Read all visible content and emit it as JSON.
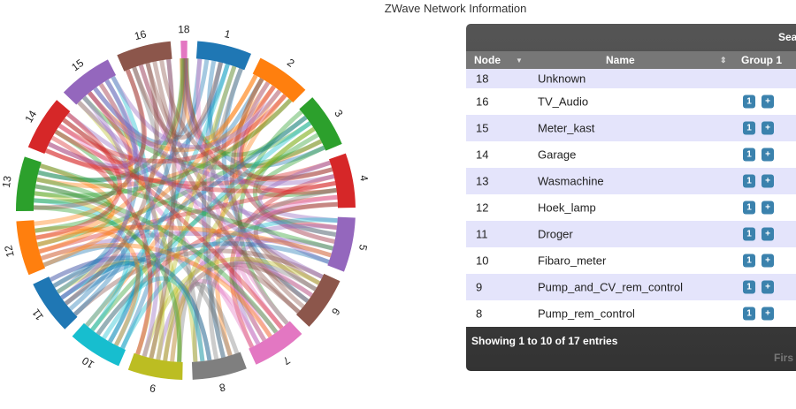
{
  "header": {
    "title": "ZWave Network Information"
  },
  "chord": {
    "nodes": [
      {
        "label": "18",
        "color": "#e377c2"
      },
      {
        "label": "1",
        "color": "#1f77b4"
      },
      {
        "label": "2",
        "color": "#ff7f0e"
      },
      {
        "label": "3",
        "color": "#2ca02c"
      },
      {
        "label": "4",
        "color": "#d62728"
      },
      {
        "label": "5",
        "color": "#9467bd"
      },
      {
        "label": "6",
        "color": "#8c564b"
      },
      {
        "label": "7",
        "color": "#e377c2"
      },
      {
        "label": "8",
        "color": "#7f7f7f"
      },
      {
        "label": "9",
        "color": "#bcbd22"
      },
      {
        "label": "10",
        "color": "#17becf"
      },
      {
        "label": "11",
        "color": "#1f77b4"
      },
      {
        "label": "12",
        "color": "#ff7f0e"
      },
      {
        "label": "13",
        "color": "#2ca02c"
      },
      {
        "label": "14",
        "color": "#d62728"
      },
      {
        "label": "15",
        "color": "#9467bd"
      },
      {
        "label": "16",
        "color": "#8c564b"
      }
    ]
  },
  "table": {
    "search": "Sea",
    "columns": [
      "Node",
      "Name",
      "Group 1"
    ],
    "rows": [
      {
        "node": 18,
        "name": "Unknown",
        "group": []
      },
      {
        "node": 16,
        "name": "TV_Audio",
        "group": [
          "1",
          "+"
        ]
      },
      {
        "node": 15,
        "name": "Meter_kast",
        "group": [
          "1",
          "+"
        ]
      },
      {
        "node": 14,
        "name": "Garage",
        "group": [
          "1",
          "+"
        ]
      },
      {
        "node": 13,
        "name": "Wasmachine",
        "group": [
          "1",
          "+"
        ]
      },
      {
        "node": 12,
        "name": "Hoek_lamp",
        "group": [
          "1",
          "+"
        ]
      },
      {
        "node": 11,
        "name": "Droger",
        "group": [
          "1",
          "+"
        ]
      },
      {
        "node": 10,
        "name": "Fibaro_meter",
        "group": [
          "1",
          "+"
        ]
      },
      {
        "node": 9,
        "name": "Pump_and_CV_rem_control",
        "group": [
          "1",
          "+"
        ]
      },
      {
        "node": 8,
        "name": "Pump_rem_control",
        "group": [
          "1",
          "+"
        ]
      }
    ],
    "info": "Showing 1 to 10 of 17 entries",
    "first": "Firs"
  }
}
